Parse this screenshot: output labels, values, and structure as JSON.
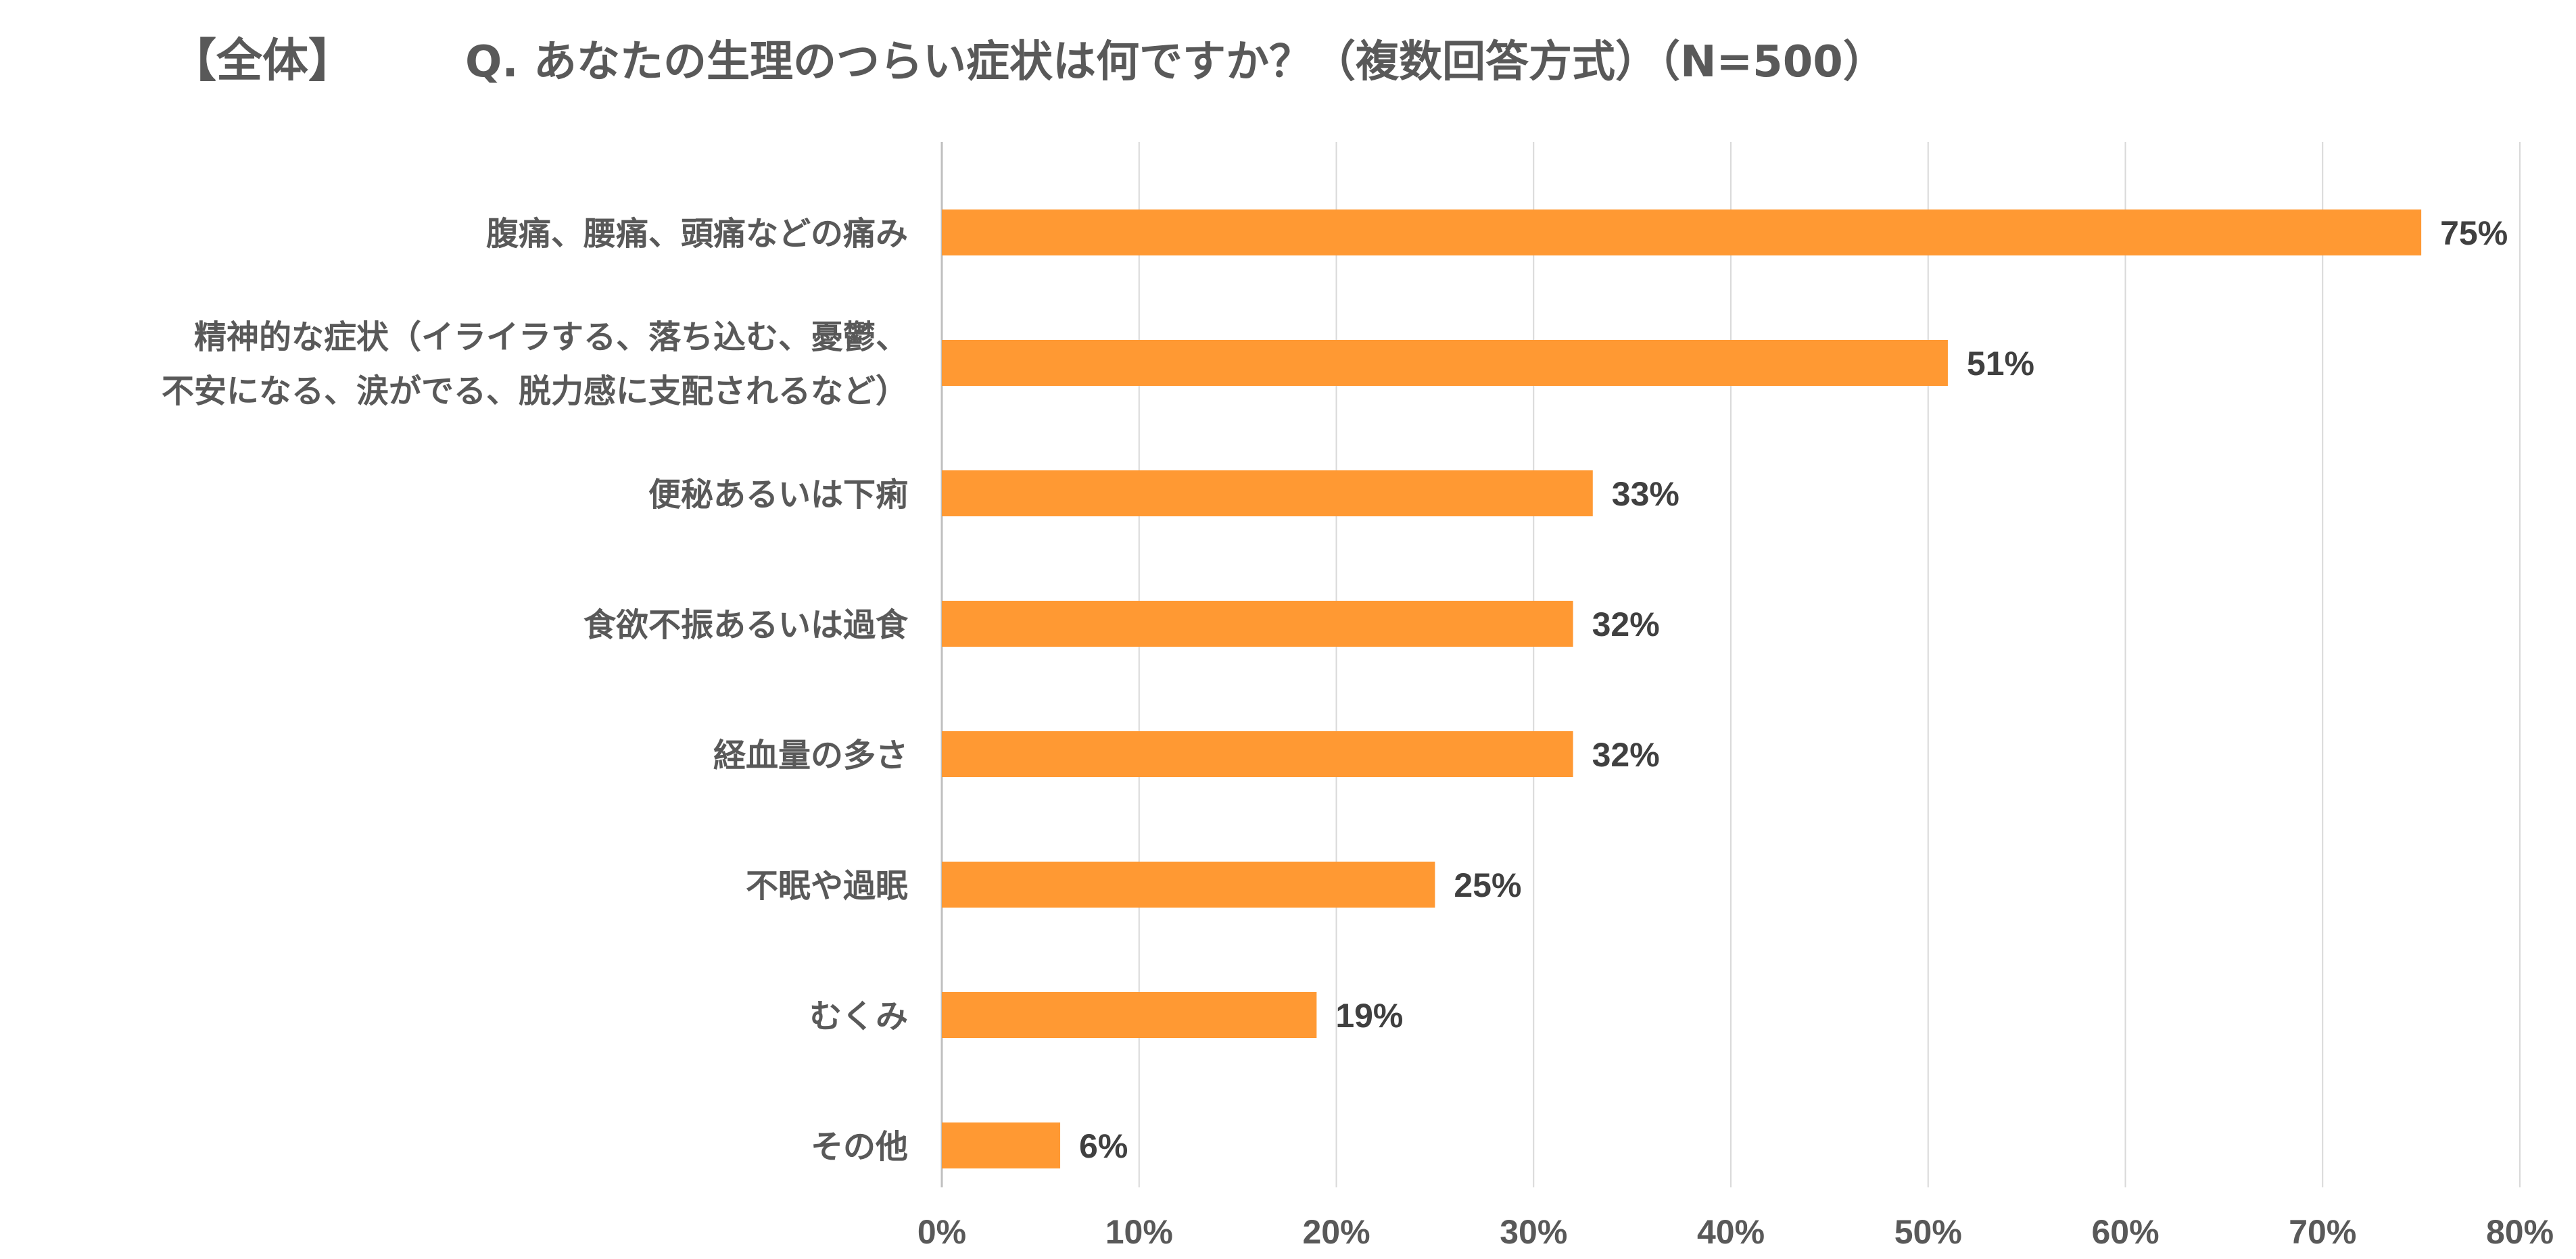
{
  "colors": {
    "bar": "#FF9933",
    "text": "#595959",
    "data_label": "#404040",
    "grid": "#D9D9D9",
    "axis": "#BFBFBF",
    "background": "#FFFFFF"
  },
  "chart_data": {
    "type": "bar",
    "orientation": "horizontal",
    "title_left": "【全体】",
    "title": "Q. あなたの生理のつらい症状は何ですか？（複数回答方式）（N=500）",
    "categories": [
      [
        "腹痛、腰痛、頭痛などの痛み"
      ],
      [
        "精神的な症状（イライラする、落ち込む、憂鬱、",
        "不安になる、涙がでる、脱力感に支配されるなど）"
      ],
      [
        "便秘あるいは下痢"
      ],
      [
        "食欲不振あるいは過食"
      ],
      [
        "経血量の多さ"
      ],
      [
        "不眠や過眠"
      ],
      [
        "むくみ"
      ],
      [
        "その他"
      ]
    ],
    "values": [
      75,
      51,
      33,
      32,
      32,
      25,
      19,
      6
    ],
    "data_labels": [
      "75%",
      "51%",
      "33%",
      "32%",
      "32%",
      "25%",
      "19%",
      "6%"
    ],
    "xlim": [
      0,
      80
    ],
    "x_ticks": [
      0,
      10,
      20,
      30,
      40,
      50,
      60,
      70,
      80
    ],
    "x_tick_labels": [
      "0%",
      "10%",
      "20%",
      "30%",
      "40%",
      "50%",
      "60%",
      "70%",
      "80%"
    ],
    "xlabel": "",
    "ylabel": "",
    "grid": "vertical",
    "legend": "none"
  }
}
